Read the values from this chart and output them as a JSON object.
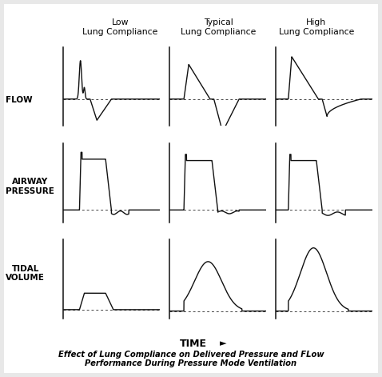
{
  "title_cols": [
    "Low\nLung Compliance",
    "Typical\nLung Compliance",
    "High\nLung Compliance"
  ],
  "row_labels": [
    "FLOW",
    "AIRWAY\nPRESSURE",
    "TIDAL\nVOLUME"
  ],
  "caption": "Effect of Lung Compliance on Delivered Pressure and FLow\nPerformance During Pressure Mode Ventilation",
  "time_label": "TIME",
  "line_color": "#111111",
  "dotted_color": "#444444",
  "border_color": "#aaaaaa",
  "bg_color": "#e8e8e8"
}
